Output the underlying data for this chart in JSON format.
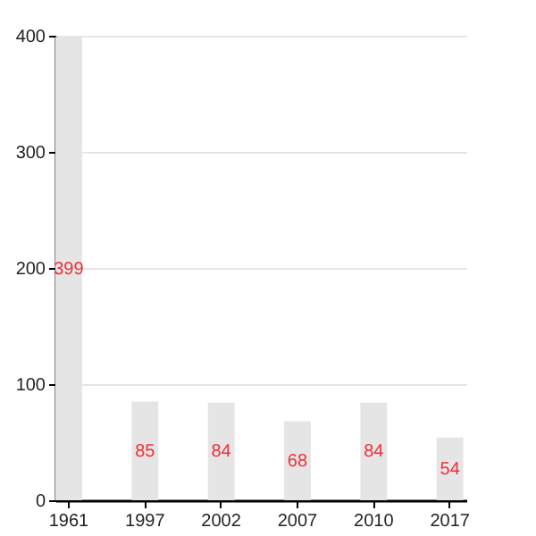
{
  "chart_data": {
    "type": "bar",
    "categories": [
      "1961",
      "1997",
      "2002",
      "2007",
      "2010",
      "2017"
    ],
    "values": [
      399,
      85,
      84,
      68,
      84,
      54
    ],
    "color": "#e5e5e5",
    "data_labels": true,
    "ylim": [
      0,
      400
    ],
    "yticks": [
      0,
      100,
      200,
      300,
      400
    ],
    "grid": "y"
  }
}
